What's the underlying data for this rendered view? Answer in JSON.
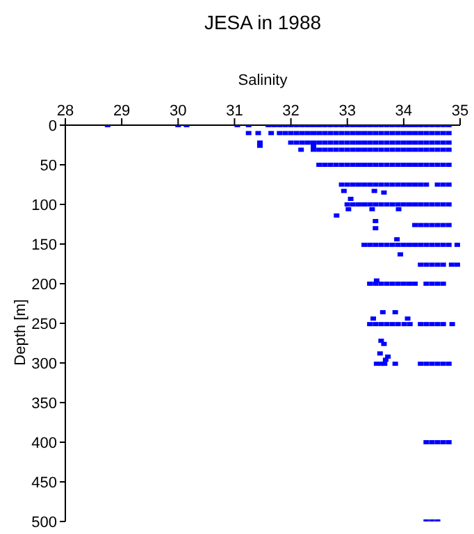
{
  "chart_data": {
    "type": "scatter",
    "title": "JESA in 1988",
    "xlabel": "Salinity",
    "ylabel": "Depth [m]",
    "marker": "square",
    "grid": false,
    "xlim": [
      28,
      35
    ],
    "xticks": [
      28,
      29,
      30,
      31,
      32,
      33,
      34,
      35
    ],
    "ylim": [
      500,
      0
    ],
    "yticks": [
      0,
      50,
      100,
      150,
      200,
      250,
      300,
      350,
      400,
      450,
      500
    ],
    "series": [
      {
        "color": "#0000ff",
        "x": [
          28.75,
          30.0,
          30.15,
          31.05,
          31.25,
          31.6,
          31.7,
          31.8,
          31.9,
          32.0,
          32.1,
          32.2,
          32.3,
          32.4,
          32.5,
          32.6,
          32.7,
          32.8,
          32.9,
          33.0,
          33.1,
          33.2,
          33.3,
          33.4,
          33.5,
          33.6,
          33.7,
          33.8,
          33.9,
          34.0,
          34.1,
          34.2,
          34.3,
          34.4,
          34.5,
          34.6,
          34.7,
          34.8
        ],
        "values": [
          0,
          0,
          0,
          0,
          0,
          0,
          0,
          0,
          0,
          0,
          0,
          0,
          0,
          0,
          0,
          0,
          0,
          0,
          0,
          0,
          0,
          0,
          0,
          0,
          0,
          0,
          0,
          0,
          0,
          0,
          0,
          0,
          0,
          0,
          0,
          0,
          0,
          0
        ]
      },
      {
        "color": "#0000ff",
        "x": [
          31.25,
          31.42,
          31.65,
          31.8,
          31.9,
          32.0,
          32.1,
          32.2,
          32.3,
          32.4,
          32.5,
          32.6,
          32.7,
          32.8,
          32.9,
          33.0,
          33.1,
          33.2,
          33.3,
          33.4,
          33.5,
          33.6,
          33.7,
          33.8,
          33.9,
          34.0,
          34.1,
          34.2,
          34.3,
          34.4,
          34.5,
          34.6,
          34.7,
          34.8
        ],
        "values": [
          10,
          10,
          10,
          10,
          10,
          10,
          10,
          10,
          10,
          10,
          10,
          10,
          10,
          10,
          10,
          10,
          10,
          10,
          10,
          10,
          10,
          10,
          10,
          10,
          10,
          10,
          10,
          10,
          10,
          10,
          10,
          10,
          10,
          10
        ]
      },
      {
        "color": "#0000ff",
        "x": [
          31.45,
          31.45,
          32.0,
          32.4,
          32.1,
          32.2,
          32.3,
          32.4,
          32.5,
          32.6,
          32.7,
          32.8,
          32.9,
          33.0,
          33.1,
          33.2,
          33.3,
          33.4,
          33.5,
          33.6,
          33.7,
          33.8,
          33.9,
          34.0,
          34.1,
          34.2,
          34.3,
          34.4,
          34.5,
          34.6,
          34.7,
          34.8
        ],
        "values": [
          22,
          26,
          22,
          27,
          22,
          22,
          22,
          22,
          22,
          22,
          22,
          22,
          22,
          22,
          22,
          22,
          22,
          22,
          22,
          22,
          22,
          22,
          22,
          22,
          22,
          22,
          22,
          22,
          22,
          22,
          22,
          22
        ]
      },
      {
        "color": "#0000ff",
        "x": [
          32.18,
          32.4,
          32.5,
          32.6,
          32.7,
          32.8,
          32.9,
          33.0,
          33.1,
          33.2,
          33.3,
          33.4,
          33.5,
          33.6,
          33.7,
          33.8,
          33.9,
          34.0,
          34.1,
          34.2,
          34.3,
          34.4,
          34.5,
          34.6,
          34.7,
          34.8
        ],
        "values": [
          31,
          31,
          31,
          31,
          31,
          31,
          31,
          31,
          31,
          31,
          31,
          31,
          31,
          31,
          31,
          31,
          31,
          31,
          31,
          31,
          31,
          31,
          31,
          31,
          31,
          31
        ]
      },
      {
        "color": "#0000ff",
        "x": [
          32.5,
          32.6,
          32.7,
          32.8,
          32.9,
          33.0,
          33.1,
          33.2,
          33.3,
          33.4,
          33.5,
          33.6,
          33.7,
          33.8,
          33.9,
          34.0,
          34.1,
          34.2,
          34.3,
          34.4,
          34.5,
          34.6,
          34.7,
          34.8
        ],
        "values": [
          50,
          50,
          50,
          50,
          50,
          50,
          50,
          50,
          50,
          50,
          50,
          50,
          50,
          50,
          50,
          50,
          50,
          50,
          50,
          50,
          50,
          50,
          50,
          50
        ]
      },
      {
        "color": "#0000ff",
        "x": [
          32.9,
          33.0,
          33.1,
          33.2,
          33.3,
          33.4,
          33.5,
          33.6,
          33.7,
          33.8,
          33.9,
          34.0,
          34.1,
          34.2,
          34.3,
          34.4,
          34.6,
          34.7,
          34.8,
          32.94,
          33.48,
          33.65,
          33.06
        ],
        "values": [
          75,
          75,
          75,
          75,
          75,
          75,
          75,
          75,
          75,
          75,
          75,
          75,
          75,
          75,
          75,
          75,
          75,
          75,
          75,
          83,
          83,
          85,
          93
        ]
      },
      {
        "color": "#0000ff",
        "x": [
          33.0,
          33.1,
          33.2,
          33.3,
          33.4,
          33.5,
          33.6,
          33.7,
          33.8,
          33.9,
          34.0,
          34.1,
          34.2,
          34.3,
          34.4,
          34.5,
          34.6,
          34.7,
          34.8,
          33.02,
          33.44,
          33.91,
          32.81,
          33.5,
          33.5
        ],
        "values": [
          100,
          100,
          100,
          100,
          100,
          100,
          100,
          100,
          100,
          100,
          100,
          100,
          100,
          100,
          100,
          100,
          100,
          100,
          100,
          106,
          106,
          106,
          114,
          121,
          130
        ]
      },
      {
        "color": "#0000ff",
        "x": [
          34.2,
          34.3,
          34.4,
          34.5,
          34.6,
          34.7,
          34.8,
          33.88,
          33.94
        ],
        "values": [
          126,
          126,
          126,
          126,
          126,
          126,
          126,
          144,
          163
        ]
      },
      {
        "color": "#0000ff",
        "x": [
          33.3,
          33.4,
          33.5,
          33.6,
          33.7,
          33.8,
          33.9,
          34.0,
          34.1,
          34.2,
          34.3,
          34.4,
          34.5,
          34.6,
          34.7,
          34.8,
          34.95
        ],
        "values": [
          151,
          151,
          151,
          151,
          151,
          151,
          151,
          151,
          151,
          151,
          151,
          151,
          151,
          151,
          151,
          151,
          151
        ]
      },
      {
        "color": "#0000ff",
        "x": [
          34.3,
          34.4,
          34.5,
          34.6,
          34.7,
          34.85,
          34.95,
          33.52
        ],
        "values": [
          176,
          176,
          176,
          176,
          176,
          176,
          176,
          196
        ]
      },
      {
        "color": "#0000ff",
        "x": [
          33.4,
          33.5,
          33.6,
          33.7,
          33.8,
          33.9,
          34.0,
          34.1,
          34.2,
          34.4,
          34.5,
          34.6,
          34.7
        ],
        "values": [
          200,
          200,
          200,
          200,
          200,
          200,
          200,
          200,
          200,
          200,
          200,
          200,
          200
        ]
      },
      {
        "color": "#0000ff",
        "x": [
          33.63,
          33.85,
          33.46,
          34.07,
          33.4,
          33.5,
          33.6,
          33.7,
          33.8,
          33.9,
          34.01,
          34.11,
          34.3,
          34.4,
          34.5,
          34.6,
          34.7,
          34.86
        ],
        "values": [
          236,
          236,
          244,
          244,
          251,
          251,
          251,
          251,
          251,
          251,
          251,
          251,
          251,
          251,
          251,
          251,
          251,
          251
        ]
      },
      {
        "color": "#0000ff",
        "x": [
          33.6,
          33.65,
          33.58,
          33.72,
          33.68,
          33.52,
          33.6,
          33.66,
          33.85,
          34.3,
          34.4,
          34.5,
          34.6,
          34.7,
          34.8
        ],
        "values": [
          272,
          276,
          288,
          292,
          296,
          301,
          301,
          301,
          301,
          301,
          301,
          301,
          301,
          301,
          301
        ]
      },
      {
        "color": "#0000ff",
        "x": [
          34.4,
          34.5,
          34.6,
          34.7,
          34.8,
          34.4,
          34.5,
          34.6
        ],
        "values": [
          400,
          400,
          400,
          400,
          400,
          500,
          500,
          500
        ]
      }
    ]
  }
}
